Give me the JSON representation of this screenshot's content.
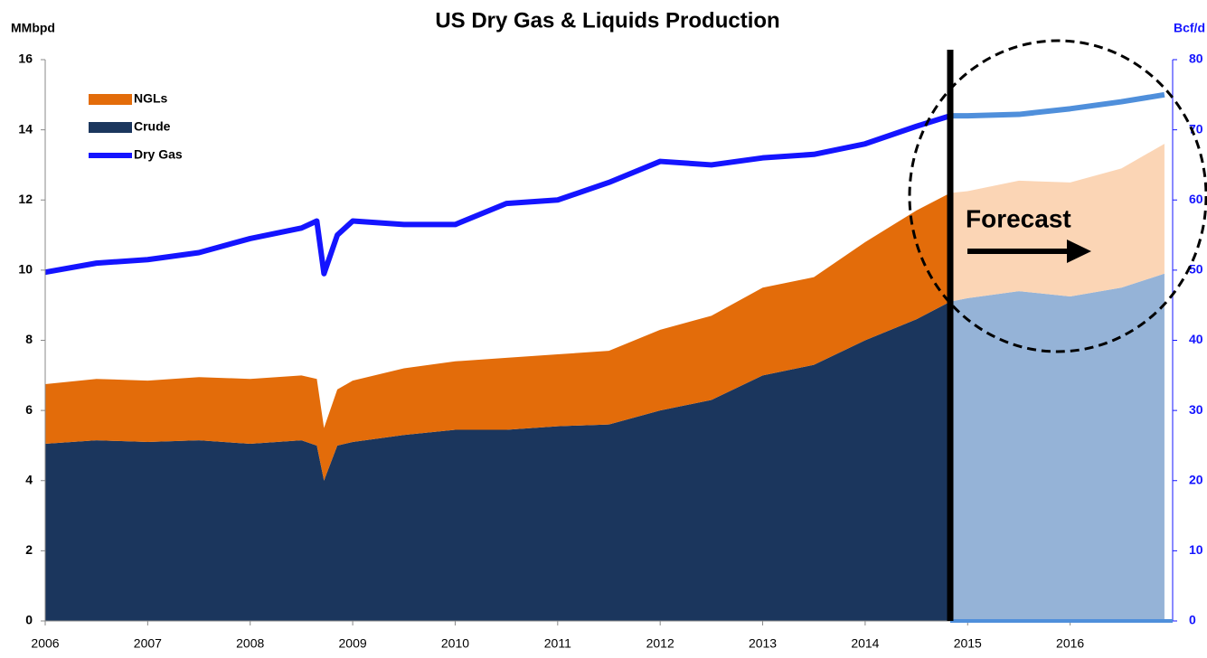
{
  "chart_data": {
    "type": "stacked-area-line",
    "title": "US Dry Gas & Liquids Production",
    "y_label": "MMbpd",
    "y2_label": "Bcf/d",
    "x": [
      2006.0,
      2006.5,
      2007.0,
      2007.5,
      2008.0,
      2008.5,
      2008.65,
      2008.72,
      2008.85,
      2009.0,
      2009.5,
      2010.0,
      2010.5,
      2011.0,
      2011.5,
      2012.0,
      2012.5,
      2013.0,
      2013.5,
      2014.0,
      2014.5,
      2014.83,
      2015.0,
      2015.5,
      2016.0,
      2016.5,
      2016.92
    ],
    "series": [
      {
        "name": "Crude",
        "color": "#1b365d",
        "forecast_color": "#95b3d7",
        "values": [
          5.05,
          5.15,
          5.1,
          5.15,
          5.05,
          5.15,
          5.0,
          4.0,
          5.0,
          5.1,
          5.3,
          5.45,
          5.45,
          5.55,
          5.6,
          6.0,
          6.3,
          7.0,
          7.3,
          8.0,
          8.6,
          9.1,
          9.2,
          9.4,
          9.25,
          9.5,
          9.9
        ]
      },
      {
        "name": "NGLs",
        "color": "#e36c0a",
        "forecast_color": "#fbd5b5",
        "values": [
          1.7,
          1.75,
          1.75,
          1.8,
          1.85,
          1.85,
          1.9,
          1.5,
          1.6,
          1.75,
          1.9,
          1.95,
          2.05,
          2.05,
          2.1,
          2.3,
          2.4,
          2.5,
          2.5,
          2.8,
          3.1,
          3.1,
          3.05,
          3.15,
          3.25,
          3.4,
          3.7
        ]
      },
      {
        "name": "Dry Gas",
        "color": "#1414ff",
        "forecast_color": "#4f8fdb",
        "axis": "y2",
        "values": [
          49.7,
          51,
          51.5,
          52.5,
          54.5,
          56,
          57,
          49.5,
          55,
          57,
          56.5,
          56.5,
          59.5,
          60,
          62.5,
          65.5,
          65,
          66,
          66.5,
          68,
          70.5,
          72,
          72,
          72.2,
          73,
          74,
          75
        ]
      }
    ],
    "forecast": {
      "label": "Forecast",
      "x": 2014.83
    },
    "xlim": [
      2006,
      2017
    ],
    "xticks": [
      2006,
      2007,
      2008,
      2009,
      2010,
      2011,
      2012,
      2013,
      2014,
      2015,
      2016
    ],
    "ylim": [
      0,
      16
    ],
    "yticks": [
      0,
      2,
      4,
      6,
      8,
      10,
      12,
      14,
      16
    ],
    "y2lim": [
      0,
      80
    ],
    "y2ticks": [
      0,
      10,
      20,
      30,
      40,
      50,
      60,
      70,
      80
    ],
    "legend": "top-left"
  }
}
